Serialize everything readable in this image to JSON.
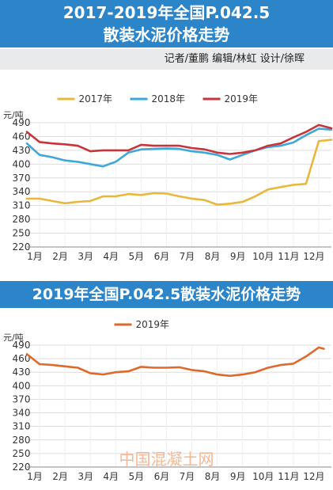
{
  "panel1": {
    "title_line1": "2017-2019年全国P.042.5",
    "title_line2": "散装水泥价格走势",
    "credit": "记者/董鹏   编辑/林虹   设计/徐晖"
  },
  "panel2": {
    "title": "2019年全国P.042.5散装水泥价格走势"
  },
  "watermark": "中国混凝土网",
  "colors": {
    "y2017": "#e8b83a",
    "y2018": "#3ea7d9",
    "y2019": "#c8343a",
    "y2019_single": "#dd6a2c",
    "title_bar": "#2b85c8"
  },
  "chart_data": [
    {
      "type": "line",
      "ylabel": "元/吨",
      "ylim": [
        220,
        490
      ],
      "yticks": [
        220,
        250,
        280,
        310,
        340,
        370,
        400,
        430,
        460,
        490
      ],
      "categories": [
        "1月",
        "2月",
        "3月",
        "4月",
        "5月",
        "6月",
        "7月",
        "8月",
        "9月",
        "10月",
        "11月",
        "12月"
      ],
      "legend_position": "top",
      "grid": true,
      "series": [
        {
          "name": "2017年",
          "color": "#e8b83a",
          "x": [
            0,
            0.5,
            1,
            1.5,
            2,
            2.5,
            3,
            3.5,
            4,
            4.5,
            5,
            5.5,
            6,
            6.5,
            7,
            7.5,
            8,
            8.5,
            9,
            9.5,
            10,
            10.5,
            11,
            11.5,
            12
          ],
          "values": [
            325,
            325,
            320,
            315,
            318,
            320,
            330,
            330,
            335,
            333,
            337,
            336,
            330,
            325,
            322,
            312,
            314,
            318,
            330,
            345,
            350,
            355,
            357,
            450,
            453
          ]
        },
        {
          "name": "2018年",
          "color": "#3ea7d9",
          "x": [
            0,
            0.5,
            1,
            1.5,
            2,
            2.5,
            3,
            3.5,
            4,
            4.5,
            5,
            5.5,
            6,
            6.5,
            7,
            7.5,
            8,
            8.5,
            9,
            9.5,
            10,
            10.5,
            11,
            11.5,
            12
          ],
          "values": [
            445,
            420,
            415,
            408,
            405,
            400,
            395,
            405,
            425,
            432,
            433,
            434,
            433,
            428,
            425,
            420,
            410,
            420,
            430,
            437,
            440,
            447,
            463,
            477,
            475
          ]
        },
        {
          "name": "2019年",
          "color": "#c8343a",
          "x": [
            0,
            0.5,
            1,
            1.5,
            2,
            2.5,
            3,
            3.5,
            4,
            4.5,
            5,
            5.5,
            6,
            6.5,
            7,
            7.5,
            8,
            8.5,
            9,
            9.5,
            10,
            10.5,
            11,
            11.5,
            12
          ],
          "values": [
            470,
            448,
            445,
            443,
            440,
            428,
            430,
            430,
            430,
            442,
            440,
            440,
            440,
            435,
            432,
            425,
            422,
            425,
            430,
            440,
            445,
            458,
            470,
            485,
            478
          ]
        }
      ]
    },
    {
      "type": "line",
      "ylabel": "元/吨",
      "ylim": [
        220,
        490
      ],
      "yticks": [
        220,
        250,
        280,
        310,
        340,
        370,
        400,
        430,
        460,
        490
      ],
      "categories": [
        "1月",
        "2月",
        "3月",
        "4月",
        "5月",
        "6月",
        "7月",
        "8月",
        "9月",
        "10月",
        "11月",
        "12月"
      ],
      "legend_position": "top",
      "grid": true,
      "series": [
        {
          "name": "2019年",
          "color": "#dd6a2c",
          "x": [
            0,
            0.5,
            1,
            1.5,
            2,
            2.5,
            3,
            3.5,
            4,
            4.5,
            5,
            5.5,
            6,
            6.5,
            7,
            7.5,
            8,
            8.5,
            9,
            9.5,
            10,
            10.5,
            11,
            11.5,
            11.7
          ],
          "values": [
            470,
            448,
            446,
            443,
            440,
            428,
            425,
            430,
            432,
            442,
            440,
            440,
            441,
            435,
            432,
            425,
            422,
            425,
            430,
            440,
            446,
            449,
            465,
            485,
            482
          ]
        }
      ]
    }
  ]
}
